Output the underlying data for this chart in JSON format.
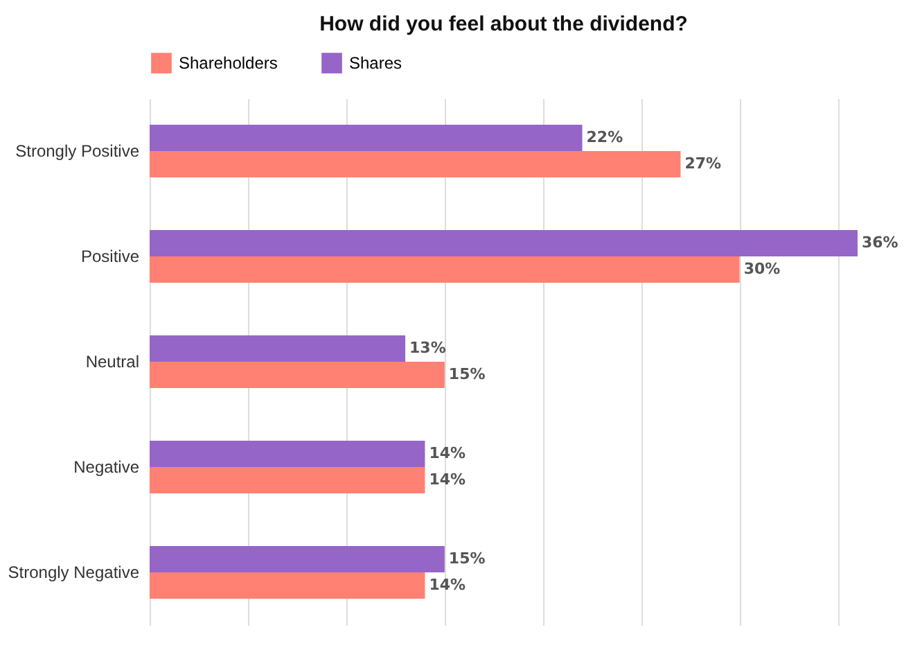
{
  "chart_data": {
    "type": "bar",
    "orientation": "horizontal",
    "title": "How did you feel about the dividend?",
    "categories": [
      "Strongly Positive",
      "Positive",
      "Neutral",
      "Negative",
      "Strongly Negative"
    ],
    "series": [
      {
        "name": "Shareholders",
        "color": "#fe8173",
        "values": [
          27,
          30,
          15,
          14,
          14
        ],
        "value_labels": [
          "27%",
          "30%",
          "15%",
          "14%",
          "14%"
        ]
      },
      {
        "name": "Shares",
        "color": "#9665c8",
        "values": [
          22,
          36,
          13,
          14,
          15
        ],
        "value_labels": [
          "22%",
          "36%",
          "13%",
          "14%",
          "15%"
        ]
      }
    ],
    "xlim": [
      0,
      36
    ],
    "xticks": [
      {
        "value": 0,
        "label": null
      },
      {
        "value": 5,
        "label": null
      },
      {
        "value": 10,
        "label": null
      },
      {
        "value": 15,
        "label": null
      },
      {
        "value": 20,
        "label": null
      },
      {
        "value": 25,
        "label": null
      },
      {
        "value": 30,
        "label": null
      },
      {
        "value": 35,
        "label": null
      }
    ],
    "grid": "x",
    "legend": "top",
    "tick_labels": "y"
  }
}
